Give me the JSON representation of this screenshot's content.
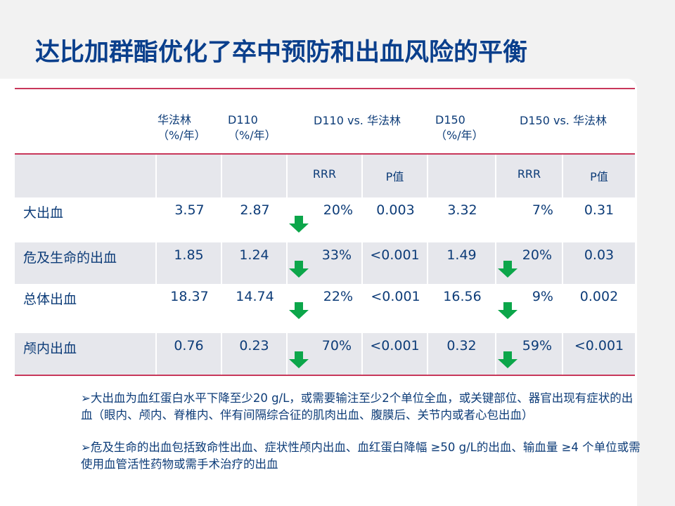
{
  "title": "达比加群酯优化了卒中预防和出血风险的平衡",
  "table": {
    "header": {
      "warfarin": [
        "华法林",
        "（%/年）"
      ],
      "d110": [
        "D110",
        "（%/年）"
      ],
      "d110_vs": "D110 vs. 华法林",
      "d150": [
        "D150",
        "（%/年）"
      ],
      "d150_vs": "D150 vs. 华法林"
    },
    "subheader": {
      "rrr1": "RRR",
      "p1": "P值",
      "rrr2": "RRR",
      "p2": "P值"
    },
    "rows": [
      {
        "label": "大出血",
        "warfarin": "3.57",
        "d110": "2.87",
        "rrr1": "20%",
        "p1": "0.003",
        "d150": "3.32",
        "rrr2": "7%",
        "p2": "0.31",
        "arrow1": true,
        "arrow2": false
      },
      {
        "label": "危及生命的出血",
        "warfarin": "1.85",
        "d110": "1.24",
        "rrr1": "33%",
        "p1": "<0.001",
        "d150": "1.49",
        "rrr2": "20%",
        "p2": "0.03",
        "arrow1": true,
        "arrow2": true
      },
      {
        "label": "总体出血",
        "warfarin": "18.37",
        "d110": "14.74",
        "rrr1": "22%",
        "p1": "<0.001",
        "d150": "16.56",
        "rrr2": "9%",
        "p2": "0.002",
        "arrow1": true,
        "arrow2": true
      },
      {
        "label": "颅内出血",
        "warfarin": "0.76",
        "d110": "0.23",
        "rrr1": "70%",
        "p1": "<0.001",
        "d150": "0.32",
        "rrr2": "59%",
        "p2": "<0.001",
        "arrow1": true,
        "arrow2": true
      }
    ]
  },
  "notes": [
    "大出血为血红蛋白水平下降至少20 g/L，或需要输注至少2个单位全血，或关键部位、器官出现有症状的出血（眼内、颅内、脊椎内、伴有间隔综合征的肌肉出血、腹膜后、关节内或者心包出血）",
    "危及生命的出血包括致命性出血、症状性颅内出血、血红蛋白降幅 ≥50 g/L的出血、输血量 ≥4 个单位或需使用血管活性药物或需手术治疗的出血"
  ],
  "bullet": "➢",
  "colors": {
    "title": "#0a3f8c",
    "rule": "#c8375a",
    "arrow": "#0ca64a",
    "row_gray": "#e6e7ec"
  }
}
